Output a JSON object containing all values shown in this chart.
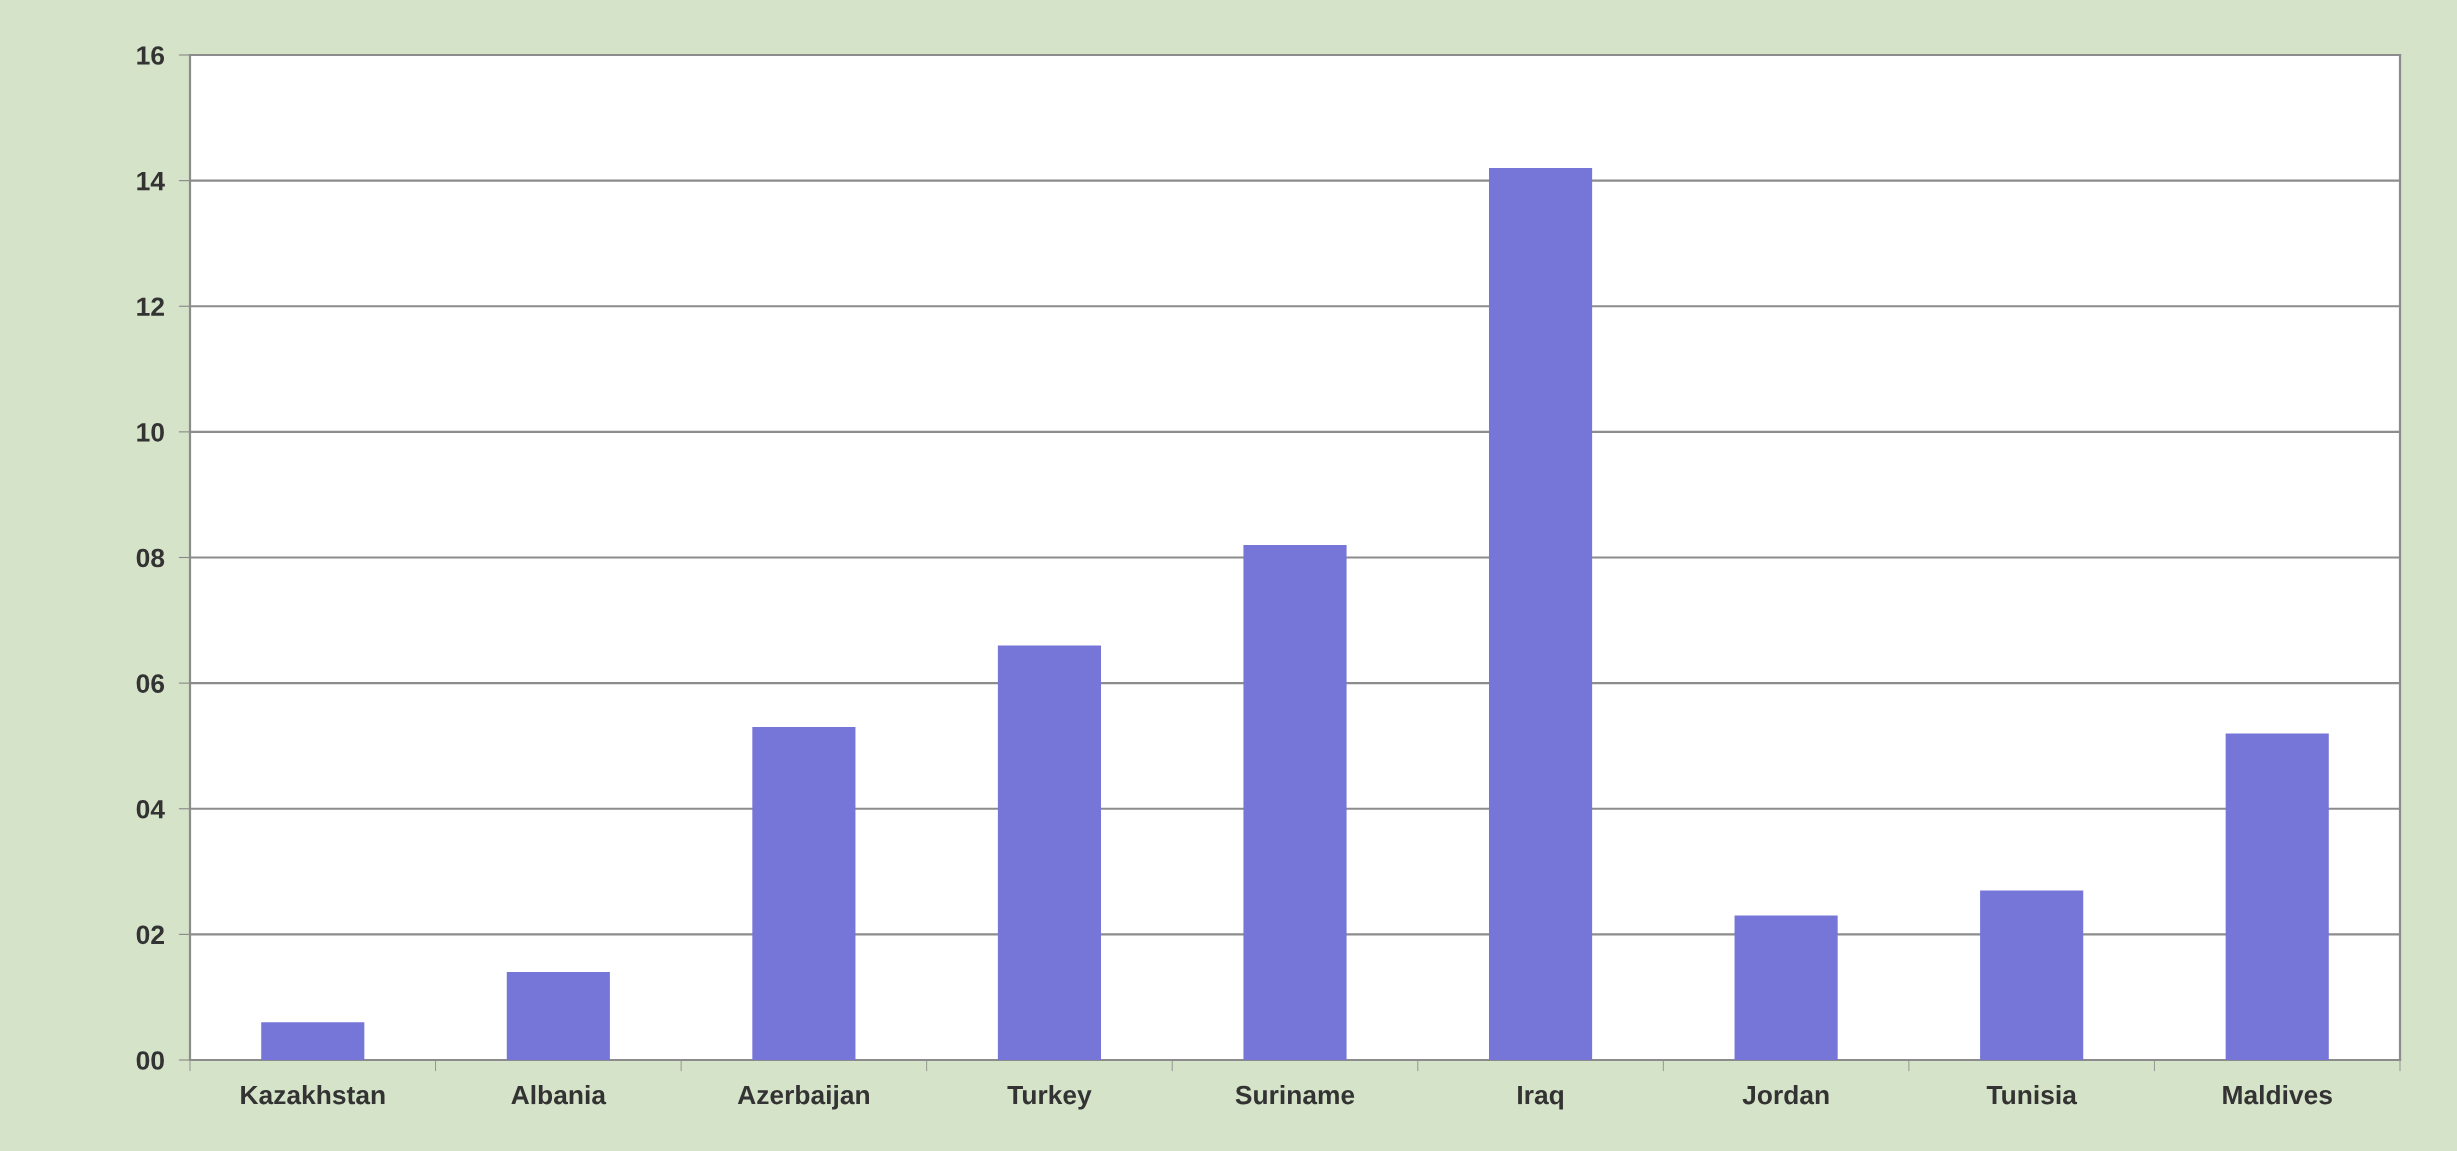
{
  "chart_data": {
    "type": "bar",
    "categories": [
      "Kazakhstan",
      "Albania",
      "Azerbaijan",
      "Turkey",
      "Suriname",
      "Iraq",
      "Jordan",
      "Tunisia",
      "Maldives"
    ],
    "values": [
      0.6,
      1.4,
      5.3,
      6.6,
      8.2,
      14.2,
      2.3,
      2.7,
      5.2
    ],
    "color": "#7676d8",
    "ylim": [
      0,
      16
    ],
    "yticks": [
      {
        "value": 0,
        "label": "00"
      },
      {
        "value": 2,
        "label": "02"
      },
      {
        "value": 4,
        "label": "04"
      },
      {
        "value": 6,
        "label": "06"
      },
      {
        "value": 8,
        "label": "08"
      },
      {
        "value": 10,
        "label": "10"
      },
      {
        "value": 12,
        "label": "12"
      },
      {
        "value": 14,
        "label": "14"
      },
      {
        "value": 16,
        "label": "16"
      }
    ],
    "grid": "y"
  }
}
